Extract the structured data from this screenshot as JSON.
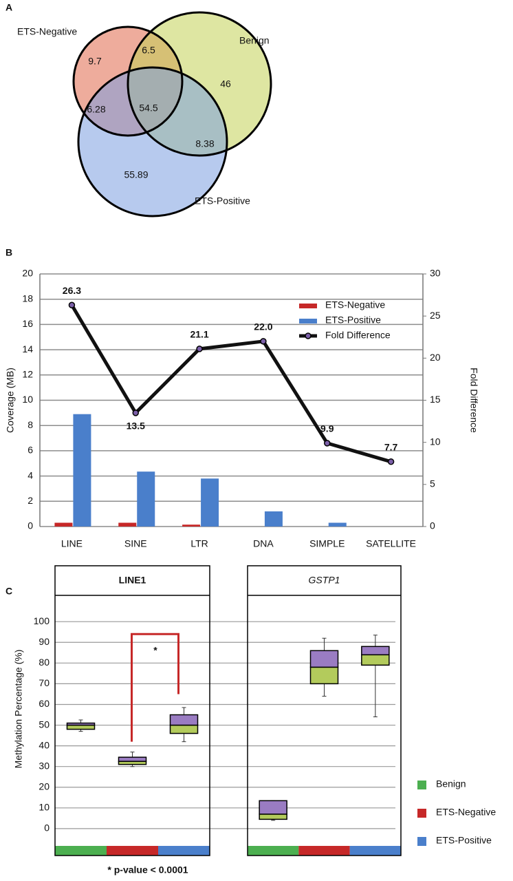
{
  "chart_data": [
    {
      "type": "venn",
      "panel_label": "A",
      "sets": [
        {
          "name": "ETS-Negative",
          "color": "#e0674b"
        },
        {
          "name": "Benign",
          "color": "#c3d155"
        },
        {
          "name": "ETS-Positive",
          "color": "#7c9ee0"
        }
      ],
      "values": [
        9.7,
        6.5,
        46,
        6.28,
        54.5,
        8.38,
        55.89
      ]
    },
    {
      "type": "bar",
      "panel_label": "B",
      "categories": [
        "LINE",
        "SINE",
        "LTR",
        "DNA",
        "SIMPLE",
        "SATELLITE"
      ],
      "series": [
        {
          "name": "ETS-Negative",
          "color": "#c62828",
          "values": [
            0.3,
            0.3,
            0.15,
            0,
            0,
            0
          ]
        },
        {
          "name": "ETS-Positive",
          "color": "#4a7fcb",
          "values": [
            8.9,
            4.35,
            3.8,
            1.2,
            0.3,
            0
          ]
        },
        {
          "name": "Fold Difference",
          "color": "#111111",
          "marker_color": "#7b5fa8",
          "axis": "y2",
          "values": [
            26.3,
            13.5,
            21.1,
            22.0,
            9.9,
            7.7
          ],
          "value_labels": [
            "26.3",
            "13.5",
            "21.1",
            "22.0",
            "9.9",
            "7.7"
          ]
        }
      ],
      "ylabel": "Coverage (MB)",
      "y2label": "Fold Difference",
      "ylim": [
        0,
        20
      ],
      "yticks": [
        0,
        2,
        4,
        6,
        8,
        10,
        12,
        14,
        16,
        18,
        20
      ],
      "y2lim": [
        0,
        30
      ],
      "y2ticks": [
        0,
        5,
        10,
        15,
        20,
        25,
        30
      ],
      "grid": true,
      "legend": "upper right"
    },
    {
      "type": "box",
      "panel_label": "C",
      "ylabel": "Methylation Percentage (%)",
      "ylim": [
        -13,
        127
      ],
      "yticks": [
        0,
        10,
        20,
        30,
        40,
        50,
        60,
        70,
        80,
        90,
        100
      ],
      "grid": true,
      "categories": [
        "Benign",
        "ETS-Negative",
        "ETS-Positive"
      ],
      "colors": [
        "#4caf50",
        "#c62828",
        "#4a7fcb"
      ],
      "lower_color": "#b3cb5c",
      "upper_color": "#9a7cc2",
      "panels": [
        {
          "title": "LINE1",
          "title_style": "bold",
          "boxes": [
            {
              "whislo": 47,
              "q1": 48,
              "med": 50,
              "q3": 51,
              "whishi": 52.5
            },
            {
              "whislo": 30,
              "q1": 31,
              "med": 32.5,
              "q3": 34.5,
              "whishi": 37
            },
            {
              "whislo": 42,
              "q1": 46,
              "med": 50,
              "q3": 55,
              "whishi": 58.5
            }
          ]
        },
        {
          "title": "GSTP1",
          "title_style": "italic",
          "boxes": [
            {
              "whislo": 4,
              "q1": 4.5,
              "med": 7,
              "q3": 13.5,
              "whishi": 13.5
            },
            {
              "whislo": 64,
              "q1": 70,
              "med": 78,
              "q3": 86,
              "whishi": 92
            },
            {
              "whislo": 54,
              "q1": 79,
              "med": 84,
              "q3": 88,
              "whishi": 93.5
            }
          ]
        }
      ],
      "annotation": "*",
      "note": "* p-value < 0.0001",
      "annotation_color": "#c62828"
    }
  ]
}
